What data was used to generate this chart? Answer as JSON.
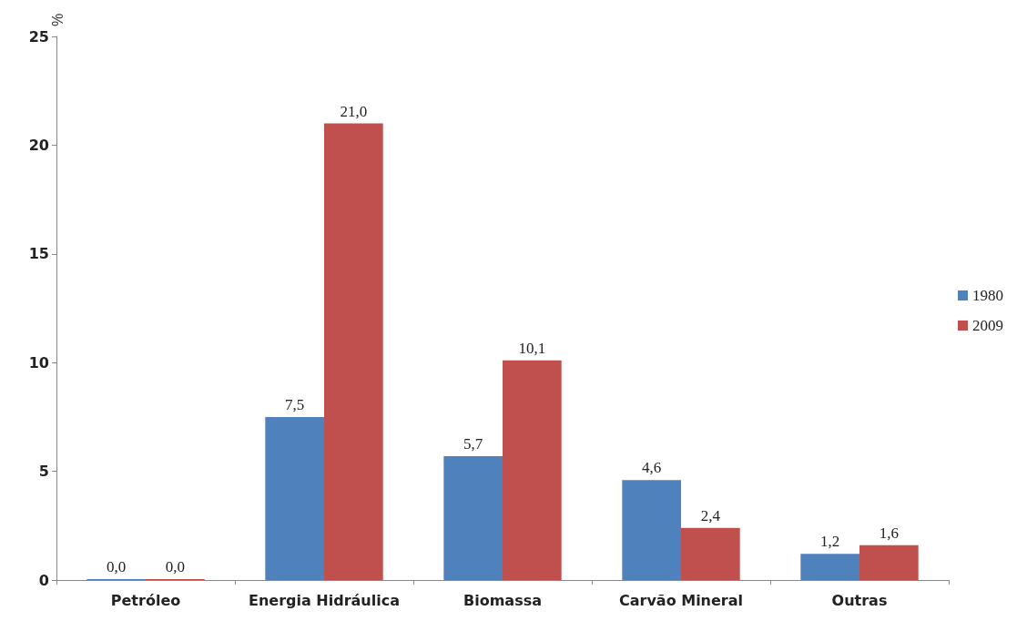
{
  "chart_data": {
    "type": "bar",
    "ylabel": "%",
    "categories": [
      "Petróleo",
      "Energia Hidráulica",
      "Biomassa",
      "Carvão Mineral",
      "Outras"
    ],
    "series": [
      {
        "name": "1980",
        "color": "#4f81bd",
        "values": [
          0.0,
          7.5,
          5.7,
          4.6,
          1.2
        ],
        "value_labels": [
          "0,0",
          "7,5",
          "5,7",
          "4,6",
          "1,2"
        ]
      },
      {
        "name": "2009",
        "color": "#c0504d",
        "values": [
          0.0,
          21.0,
          10.1,
          2.4,
          1.6
        ],
        "value_labels": [
          "0,0",
          "21,0",
          "10,1",
          "2,4",
          "1,6"
        ]
      }
    ],
    "ylim": [
      0,
      25
    ],
    "yticks": [
      0,
      5,
      10,
      15,
      20,
      25
    ],
    "grid": false,
    "legend": "right"
  }
}
